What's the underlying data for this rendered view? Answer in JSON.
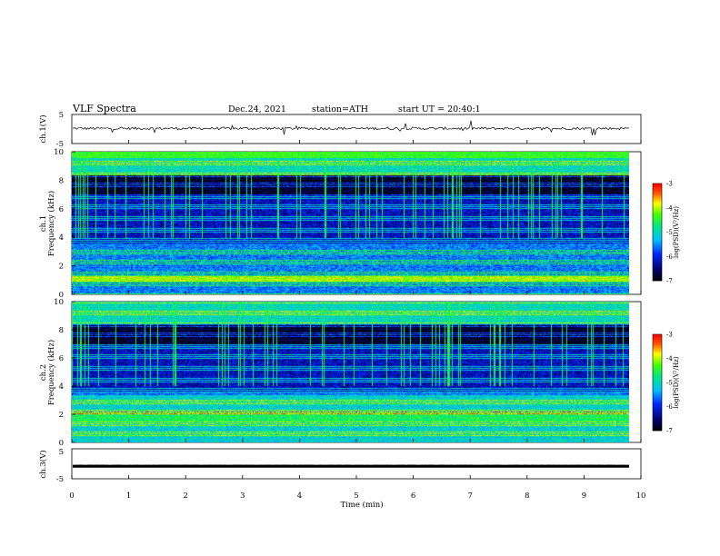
{
  "header": {
    "title": "VLF  Spectra",
    "date": "Dec.24, 2021",
    "station": "station=ATH",
    "start": "start  UT  =  20:40:1"
  },
  "chart_data": [
    {
      "type": "line",
      "name": "ch1-waveform",
      "ylabel": "ch.1(V)",
      "ylim": [
        -5,
        5
      ],
      "yticks": [
        "5",
        "-5"
      ],
      "xlim": [
        0,
        10
      ],
      "x_extent_min": 9.8,
      "baseline_v": 0.2,
      "description_visible": "continuous noisy waveform with occasional spikes"
    },
    {
      "type": "heatmap",
      "name": "ch1-spectrogram",
      "ylabel_channel": "ch.1",
      "ylabel": "Frequency  (kHz)",
      "ylim": [
        0,
        10
      ],
      "yticks": [
        "0",
        "2",
        "4",
        "6",
        "8",
        "10"
      ],
      "xlim": [
        0,
        9.8
      ],
      "colorbar": {
        "label": "log(PSD)(V²/Hz)",
        "range": [
          -7,
          -3
        ],
        "ticks": [
          "-3",
          "-4",
          "-5",
          "-6",
          "-7"
        ]
      }
    },
    {
      "type": "heatmap",
      "name": "ch2-spectrogram",
      "ylabel_channel": "ch.2",
      "ylabel": "Frequency  (kHz)",
      "ylim": [
        0,
        10
      ],
      "yticks": [
        "0",
        "2",
        "4",
        "6",
        "8",
        "10"
      ],
      "xlim": [
        0,
        9.8
      ],
      "colorbar": {
        "label": "log(PSD)(V²/Hz)",
        "range": [
          -7,
          -3
        ],
        "ticks": [
          "-3",
          "-4",
          "-5",
          "-6",
          "-7"
        ]
      }
    },
    {
      "type": "line",
      "name": "ch3-waveform",
      "ylabel": "ch.3(V)",
      "ylim": [
        -5,
        5
      ],
      "yticks": [
        "5",
        "-5"
      ],
      "xlim": [
        0,
        10
      ],
      "x_extent_min": 9.8,
      "baseline_v": -0.8
    }
  ],
  "xaxis": {
    "label": "Time  (min)",
    "ticks": [
      "0",
      "1",
      "2",
      "3",
      "4",
      "5",
      "6",
      "7",
      "8",
      "9",
      "10"
    ]
  }
}
